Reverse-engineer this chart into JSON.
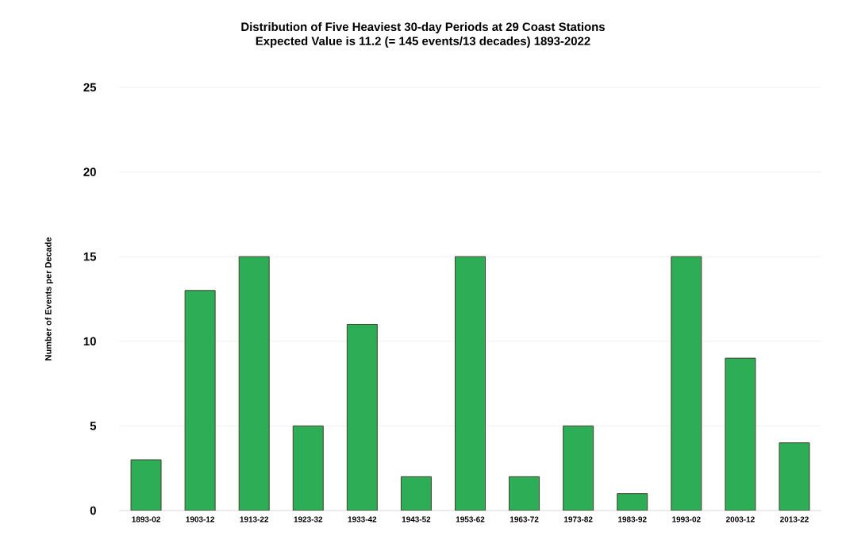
{
  "chart_data": {
    "type": "bar",
    "title": "Distribution of Five Heaviest 30-day Periods at 29 Coast Stations",
    "subtitle": "Expected Value is 11.2 (= 145 events/13 decades) 1893-2022",
    "ylabel": "Number of Events per Decade",
    "categories": [
      "1893-02",
      "1903-12",
      "1913-22",
      "1923-32",
      "1933-42",
      "1943-52",
      "1953-62",
      "1963-72",
      "1973-82",
      "1983-92",
      "1993-02",
      "2003-12",
      "2013-22"
    ],
    "values": [
      3,
      13,
      15,
      5,
      11,
      2,
      15,
      2,
      5,
      1,
      15,
      9,
      4
    ],
    "color": "#2ead57",
    "ylim": [
      0,
      25
    ],
    "yticks": [
      0,
      5,
      10,
      15,
      20,
      25
    ],
    "grid": "y"
  }
}
